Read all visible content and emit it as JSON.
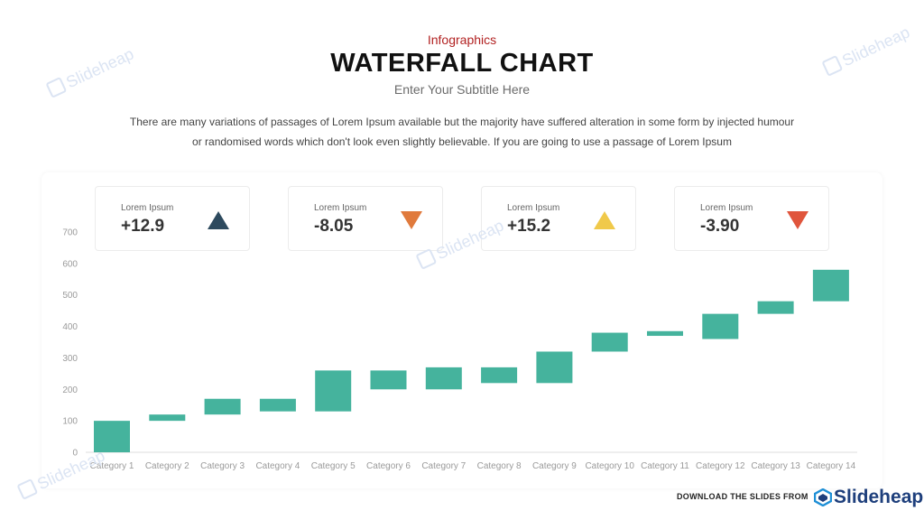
{
  "header": {
    "top_label": "Infographics",
    "title": "WATERFALL CHART",
    "subtitle": "Enter Your Subtitle Here",
    "description_line1": "There are many variations of passages of Lorem Ipsum available but the majority have suffered alteration in some form by injected humour",
    "description_line2": "or randomised words which don't look even slightly believable. If you are going to use a passage of Lorem Ipsum"
  },
  "cards": [
    {
      "label": "Lorem Ipsum",
      "value": "+12.9",
      "direction": "up",
      "color": "#2d4a5e"
    },
    {
      "label": "Lorem Ipsum",
      "value": "-8.05",
      "direction": "down",
      "color": "#e07a3c"
    },
    {
      "label": "Lorem Ipsum",
      "value": "+15.2",
      "direction": "up",
      "color": "#f0c94a"
    },
    {
      "label": "Lorem Ipsum",
      "value": "-3.90",
      "direction": "down",
      "color": "#e0553c"
    }
  ],
  "chart_data": {
    "type": "bar",
    "subtype": "waterfall",
    "title": "",
    "xlabel": "",
    "ylabel": "",
    "ylim": [
      0,
      700
    ],
    "yticks": [
      0,
      100,
      200,
      300,
      400,
      500,
      600,
      700
    ],
    "grid": false,
    "bar_color": "#45b39d",
    "categories": [
      "Category 1",
      "Category 2",
      "Category 3",
      "Category 4",
      "Category 5",
      "Category 6",
      "Category 7",
      "Category 8",
      "Category 9",
      "Category 10",
      "Category 11",
      "Category 12",
      "Category 13",
      "Category 14"
    ],
    "series": [
      {
        "bases": [
          0,
          100,
          120,
          130,
          130,
          200,
          200,
          220,
          220,
          320,
          370,
          360,
          440,
          480
        ],
        "tops": [
          100,
          120,
          170,
          170,
          260,
          260,
          270,
          270,
          320,
          380,
          385,
          440,
          480,
          580
        ]
      }
    ]
  },
  "watermark": {
    "text": "Slideheap"
  },
  "footer": {
    "download_text": "DOWNLOAD THE SLIDES FROM",
    "brand": "Slideheap",
    "brand_color": "#1e3f7c"
  }
}
